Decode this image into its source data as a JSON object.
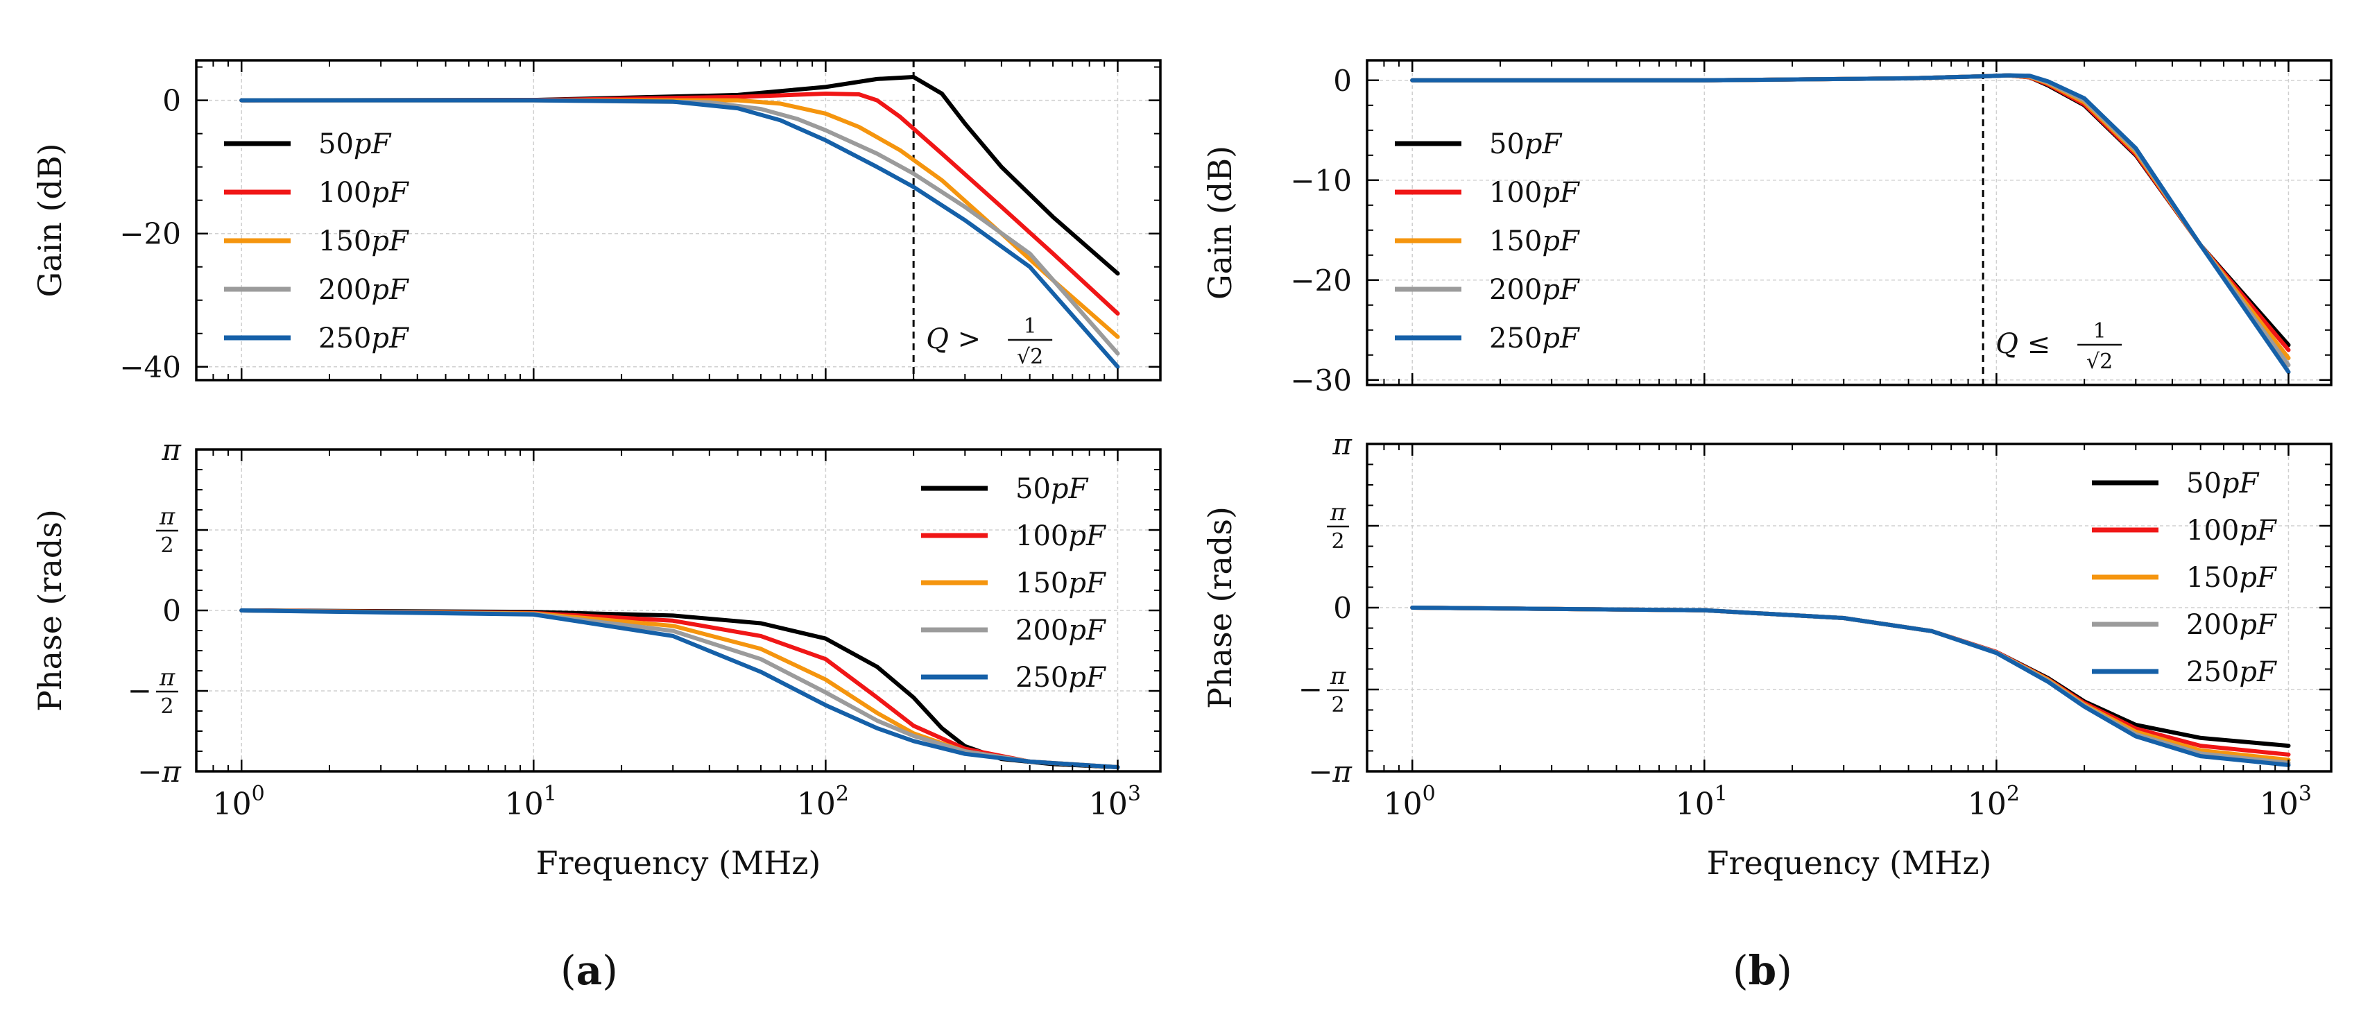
{
  "figure": {
    "panel_labels": [
      "a",
      "b"
    ],
    "colors": {
      "50pF": "#000000",
      "100pF": "#f01616",
      "150pF": "#f5950e",
      "200pF": "#9b9b9b",
      "250pF": "#1560a8"
    }
  },
  "chart_data": [
    {
      "id": "a-gain",
      "type": "line",
      "panel": "a",
      "xscale": "log",
      "xlim": [
        0.7,
        1400
      ],
      "xticks": [
        "10^0",
        "10^1",
        "10^2",
        "10^3"
      ],
      "ylabel": "Gain (dB)",
      "ylim": [
        -42,
        6
      ],
      "yticks": [
        0,
        -20,
        -40
      ],
      "ytick_labels": [
        "0",
        "−20",
        "−40"
      ],
      "grid": true,
      "legend_position": "upper-left",
      "annotation": {
        "text_prefix": "Q >",
        "fraction_num": "1",
        "fraction_den": "√2",
        "x": 200
      },
      "series": [
        {
          "name": "50pF",
          "color": "#000000",
          "x": [
            1,
            10,
            50,
            100,
            150,
            200,
            250,
            300,
            400,
            600,
            1000
          ],
          "values": [
            0,
            0.05,
            0.8,
            2.0,
            3.2,
            3.5,
            1.0,
            -3.5,
            -10,
            -17.5,
            -26
          ]
        },
        {
          "name": "100pF",
          "color": "#f01616",
          "x": [
            1,
            10,
            50,
            100,
            130,
            150,
            180,
            250,
            400,
            600,
            1000
          ],
          "values": [
            0,
            0.03,
            0.5,
            1.0,
            0.9,
            0,
            -2.5,
            -8,
            -16,
            -23,
            -32
          ]
        },
        {
          "name": "150pF",
          "color": "#f5950e",
          "x": [
            1,
            10,
            50,
            70,
            100,
            130,
            180,
            250,
            400,
            600,
            1000
          ],
          "values": [
            0,
            0,
            0,
            -0.5,
            -2,
            -4,
            -7.5,
            -12,
            -20,
            -27,
            -35.5
          ]
        },
        {
          "name": "200pF",
          "color": "#9b9b9b",
          "x": [
            1,
            10,
            40,
            60,
            80,
            100,
            150,
            200,
            300,
            500,
            1000
          ],
          "values": [
            0,
            0,
            -0.3,
            -1.3,
            -2.8,
            -4.5,
            -8,
            -11,
            -16,
            -23,
            -38
          ]
        },
        {
          "name": "250pF",
          "color": "#1560a8",
          "x": [
            1,
            10,
            30,
            50,
            70,
            100,
            150,
            200,
            300,
            500,
            1000
          ],
          "values": [
            0,
            0,
            -0.2,
            -1.2,
            -3,
            -6,
            -10,
            -13,
            -18,
            -25,
            -40
          ]
        }
      ]
    },
    {
      "id": "a-phase",
      "type": "line",
      "panel": "a",
      "xscale": "log",
      "xlim": [
        0.7,
        1400
      ],
      "xticks": [
        "10^0",
        "10^1",
        "10^2",
        "10^3"
      ],
      "xlabel": "Frequency (MHz)",
      "ylabel": "Phase (rads)",
      "ylim": [
        -3.1416,
        3.1416
      ],
      "yticks": [
        3.1416,
        1.5708,
        0,
        -1.5708,
        -3.1416
      ],
      "ytick_labels": [
        "π",
        "π/2",
        "0",
        "−π/2",
        "−π"
      ],
      "grid": true,
      "legend_position": "upper-right",
      "series": [
        {
          "name": "50pF",
          "color": "#000000",
          "x": [
            1,
            10,
            30,
            60,
            100,
            150,
            200,
            250,
            300,
            400,
            600,
            1000
          ],
          "values": [
            0,
            -0.03,
            -0.1,
            -0.25,
            -0.55,
            -1.1,
            -1.7,
            -2.3,
            -2.65,
            -2.9,
            -3.0,
            -3.06
          ]
        },
        {
          "name": "100pF",
          "color": "#f01616",
          "x": [
            1,
            10,
            30,
            60,
            100,
            150,
            200,
            300,
            500,
            1000
          ],
          "values": [
            0,
            -0.05,
            -0.2,
            -0.5,
            -0.95,
            -1.7,
            -2.25,
            -2.7,
            -2.95,
            -3.06
          ]
        },
        {
          "name": "150pF",
          "color": "#f5950e",
          "x": [
            1,
            10,
            30,
            60,
            100,
            150,
            200,
            300,
            500,
            1000
          ],
          "values": [
            0,
            -0.06,
            -0.3,
            -0.75,
            -1.35,
            -2.0,
            -2.4,
            -2.75,
            -2.95,
            -3.06
          ]
        },
        {
          "name": "200pF",
          "color": "#9b9b9b",
          "x": [
            1,
            10,
            30,
            60,
            100,
            150,
            200,
            300,
            500,
            1000
          ],
          "values": [
            0,
            -0.07,
            -0.4,
            -0.95,
            -1.6,
            -2.15,
            -2.45,
            -2.75,
            -2.95,
            -3.06
          ]
        },
        {
          "name": "250pF",
          "color": "#1560a8",
          "x": [
            1,
            10,
            30,
            60,
            100,
            150,
            200,
            300,
            500,
            1000
          ],
          "values": [
            0,
            -0.08,
            -0.5,
            -1.2,
            -1.85,
            -2.3,
            -2.55,
            -2.8,
            -2.95,
            -3.06
          ]
        }
      ]
    },
    {
      "id": "b-gain",
      "type": "line",
      "panel": "b",
      "xscale": "log",
      "xlim": [
        0.7,
        1400
      ],
      "xticks": [
        "10^0",
        "10^1",
        "10^2",
        "10^3"
      ],
      "ylabel": "Gain (dB)",
      "ylim": [
        -30.5,
        2
      ],
      "yticks": [
        0,
        -10,
        -20,
        -30
      ],
      "ytick_labels": [
        "0",
        "−10",
        "−20",
        "−30"
      ],
      "grid": true,
      "legend_position": "upper-left",
      "annotation": {
        "text_prefix": "Q ≤",
        "fraction_num": "1",
        "fraction_den": "√2",
        "x": 90
      },
      "series": [
        {
          "name": "50pF",
          "color": "#000000",
          "x": [
            1,
            10,
            50,
            90,
            110,
            130,
            150,
            200,
            300,
            500,
            1000
          ],
          "values": [
            0,
            0,
            0.2,
            0.4,
            0.5,
            0.3,
            -0.5,
            -2.5,
            -7.5,
            -16.5,
            -26.5
          ]
        },
        {
          "name": "100pF",
          "color": "#f01616",
          "x": [
            1,
            10,
            50,
            90,
            110,
            130,
            150,
            200,
            300,
            500,
            1000
          ],
          "values": [
            0,
            0,
            0.2,
            0.4,
            0.5,
            0.3,
            -0.4,
            -2.4,
            -7.4,
            -16.5,
            -27.0
          ]
        },
        {
          "name": "150pF",
          "color": "#f5950e",
          "x": [
            1,
            10,
            50,
            90,
            110,
            130,
            150,
            200,
            300,
            500,
            1000
          ],
          "values": [
            0,
            0,
            0.2,
            0.4,
            0.5,
            0.35,
            -0.3,
            -2.2,
            -7.2,
            -16.5,
            -27.8
          ]
        },
        {
          "name": "200pF",
          "color": "#9b9b9b",
          "x": [
            1,
            10,
            50,
            90,
            110,
            130,
            150,
            200,
            300,
            500,
            1000
          ],
          "values": [
            0,
            0,
            0.2,
            0.4,
            0.5,
            0.4,
            -0.2,
            -2.0,
            -7.0,
            -16.5,
            -28.5
          ]
        },
        {
          "name": "250pF",
          "color": "#1560a8",
          "x": [
            1,
            10,
            50,
            90,
            110,
            130,
            150,
            200,
            300,
            500,
            1000
          ],
          "values": [
            0,
            0,
            0.2,
            0.4,
            0.5,
            0.45,
            -0.1,
            -1.8,
            -6.8,
            -16.5,
            -29.2
          ]
        }
      ]
    },
    {
      "id": "b-phase",
      "type": "line",
      "panel": "b",
      "xscale": "log",
      "xlim": [
        0.7,
        1400
      ],
      "xticks": [
        "10^0",
        "10^1",
        "10^2",
        "10^3"
      ],
      "xlabel": "Frequency (MHz)",
      "ylabel": "Phase (rads)",
      "ylim": [
        -3.1416,
        3.1416
      ],
      "yticks": [
        3.1416,
        1.5708,
        0,
        -1.5708,
        -3.1416
      ],
      "ytick_labels": [
        "π",
        "π/2",
        "0",
        "−π/2",
        "−π"
      ],
      "grid": true,
      "legend_position": "upper-right",
      "series": [
        {
          "name": "50pF",
          "color": "#000000",
          "x": [
            1,
            10,
            30,
            60,
            100,
            150,
            200,
            300,
            500,
            1000
          ],
          "values": [
            0,
            -0.05,
            -0.2,
            -0.45,
            -0.85,
            -1.35,
            -1.8,
            -2.25,
            -2.5,
            -2.65
          ]
        },
        {
          "name": "100pF",
          "color": "#f01616",
          "x": [
            1,
            10,
            30,
            60,
            100,
            150,
            200,
            300,
            500,
            1000
          ],
          "values": [
            0,
            -0.05,
            -0.2,
            -0.45,
            -0.85,
            -1.37,
            -1.83,
            -2.32,
            -2.65,
            -2.82
          ]
        },
        {
          "name": "150pF",
          "color": "#f5950e",
          "x": [
            1,
            10,
            30,
            60,
            100,
            150,
            200,
            300,
            500,
            1000
          ],
          "values": [
            0,
            -0.05,
            -0.2,
            -0.45,
            -0.86,
            -1.38,
            -1.86,
            -2.38,
            -2.74,
            -2.92
          ]
        },
        {
          "name": "200pF",
          "color": "#9b9b9b",
          "x": [
            1,
            10,
            30,
            60,
            100,
            150,
            200,
            300,
            500,
            1000
          ],
          "values": [
            0,
            -0.05,
            -0.2,
            -0.45,
            -0.86,
            -1.4,
            -1.88,
            -2.43,
            -2.8,
            -2.98
          ]
        },
        {
          "name": "250pF",
          "color": "#1560a8",
          "x": [
            1,
            10,
            30,
            60,
            100,
            150,
            200,
            300,
            500,
            1000
          ],
          "values": [
            0,
            -0.05,
            -0.2,
            -0.45,
            -0.87,
            -1.42,
            -1.9,
            -2.47,
            -2.85,
            -3.02
          ]
        }
      ]
    }
  ]
}
